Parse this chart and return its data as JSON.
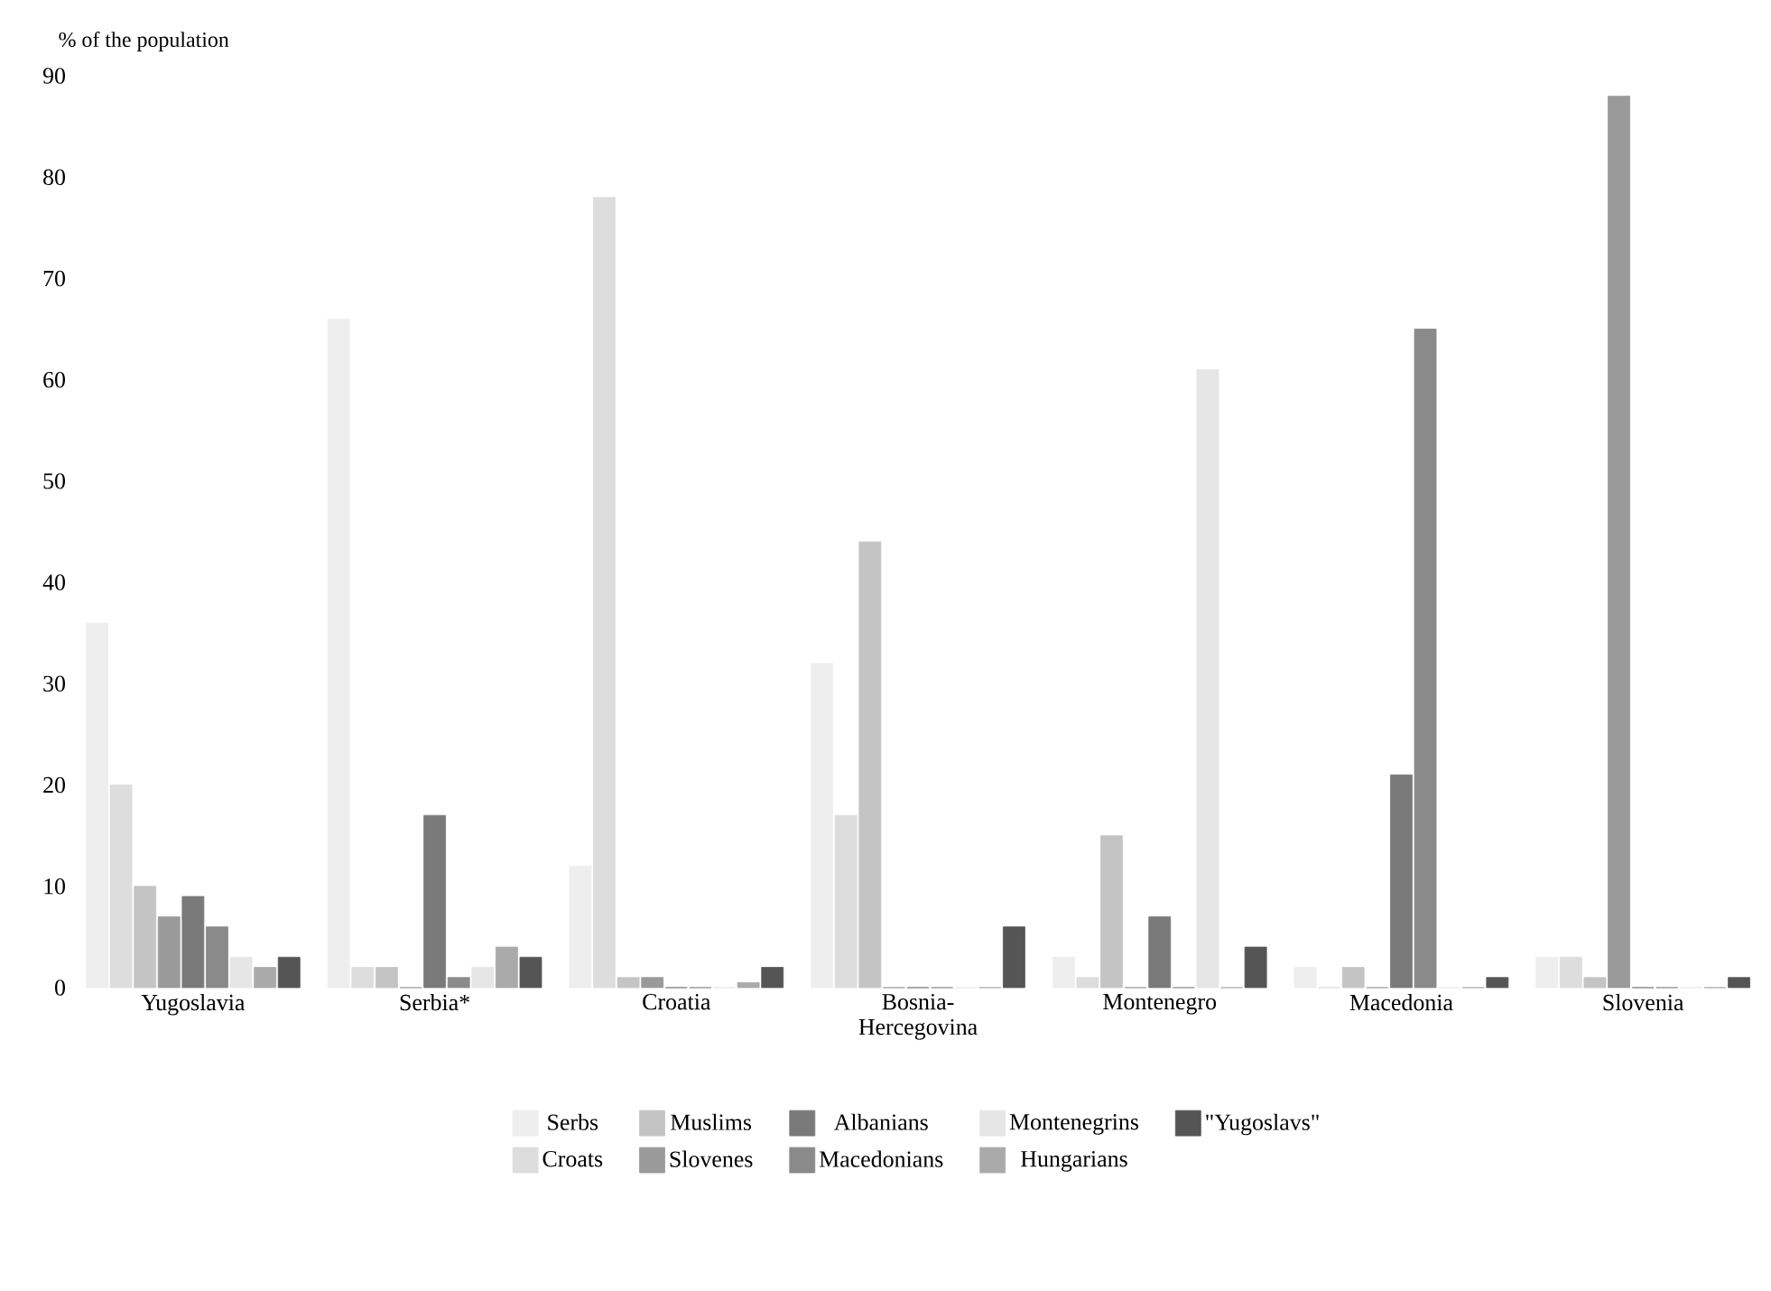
{
  "chart_data": {
    "type": "bar",
    "ylabel": "% of the population",
    "categories": [
      "Yugoslavia",
      "Serbia*",
      "Croatia",
      "Bosnia-Hercegovina",
      "Montenegro",
      "Macedonia",
      "Slovenia"
    ],
    "series": [
      {
        "name": "Serbs",
        "color": "#eeeeee",
        "values": [
          36,
          66,
          12,
          32,
          3,
          2,
          3
        ]
      },
      {
        "name": "Croats",
        "color": "#dddddd",
        "values": [
          20,
          2,
          78,
          17,
          1,
          0,
          3
        ]
      },
      {
        "name": "Muslims",
        "color": "#c4c4c4",
        "values": [
          10,
          2,
          1,
          44,
          15,
          2,
          1
        ]
      },
      {
        "name": "Slovenes",
        "color": "#9a9a9a",
        "values": [
          7,
          0,
          1,
          0,
          0,
          0,
          88
        ]
      },
      {
        "name": "Albanians",
        "color": "#7a7a7a",
        "values": [
          9,
          17,
          0,
          0,
          7,
          21,
          0
        ]
      },
      {
        "name": "Macedonians",
        "color": "#8a8a8a",
        "values": [
          6,
          1,
          0,
          0,
          0,
          65,
          0
        ]
      },
      {
        "name": "Montenegrins",
        "color": "#e6e6e6",
        "values": [
          3,
          2,
          0,
          0,
          61,
          0,
          0
        ]
      },
      {
        "name": "Hungarians",
        "color": "#aaaaaa",
        "values": [
          2,
          4,
          0.5,
          0,
          0,
          0,
          0
        ]
      },
      {
        "name": "\"Yugoslavs\"",
        "color": "#555555",
        "values": [
          3,
          3,
          2,
          6,
          4,
          1,
          1
        ]
      }
    ],
    "ylim": [
      0,
      90
    ],
    "yticks": [
      0,
      10,
      20,
      30,
      40,
      50,
      60,
      70,
      80,
      90
    ],
    "legend": "bottom"
  }
}
